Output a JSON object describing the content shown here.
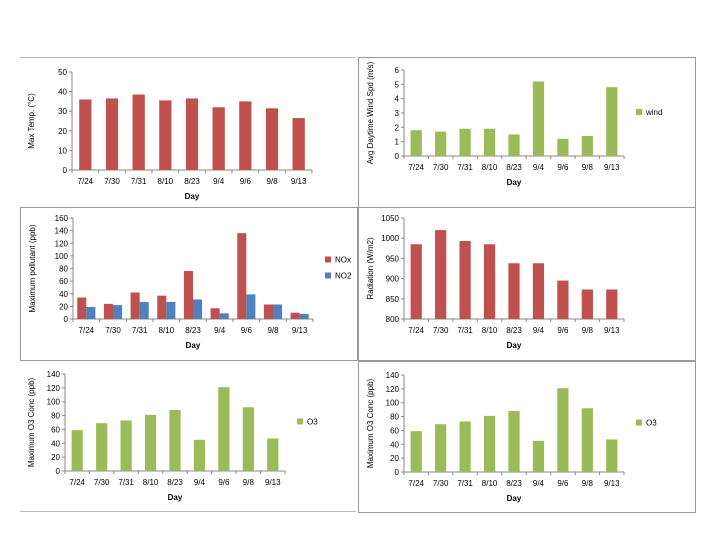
{
  "chart_data": [
    {
      "type": "bar",
      "categories": [
        "7/24",
        "7/30",
        "7/31",
        "8/10",
        "8/23",
        "9/4",
        "9/6",
        "9/8",
        "9/13"
      ],
      "series": [
        {
          "name": "",
          "values": [
            36,
            36.5,
            38.5,
            35.5,
            36.5,
            32,
            35,
            31.5,
            26.5
          ],
          "color": "#c0504d"
        }
      ],
      "ylabel": "Max Temp. (°C)",
      "xlabel": "Day",
      "ylim": [
        0,
        50
      ],
      "yticks": [
        "0",
        "10",
        "20",
        "30",
        "40",
        "50"
      ],
      "legend": "none"
    },
    {
      "type": "bar",
      "categories": [
        "7/24",
        "7/30",
        "7/31",
        "8/10",
        "8/23",
        "9/4",
        "9/6",
        "9/8",
        "9/13"
      ],
      "series": [
        {
          "name": "wind",
          "values": [
            1.8,
            1.7,
            1.9,
            1.9,
            1.5,
            5.2,
            1.2,
            1.4,
            4.8
          ],
          "color": "#9bbb59"
        }
      ],
      "ylabel": "Avg Daytime Wind Spd (m/s)",
      "xlabel": "Day",
      "ylim": [
        0,
        6
      ],
      "yticks": [
        "0",
        "1",
        "2",
        "3",
        "4",
        "5",
        "6"
      ],
      "legend": "right"
    },
    {
      "type": "bar",
      "categories": [
        "7/24",
        "7/30",
        "7/31",
        "8/10",
        "8/23",
        "9/4",
        "9/6",
        "9/8",
        "9/13"
      ],
      "series": [
        {
          "name": "NOx",
          "values": [
            34,
            24,
            42,
            37,
            76,
            17,
            136,
            23,
            10
          ],
          "color": "#c0504d"
        },
        {
          "name": "NO2",
          "values": [
            19,
            22,
            27,
            27,
            31,
            9,
            39,
            23,
            8
          ],
          "color": "#4f81bd"
        }
      ],
      "ylabel": "Maximum pollutant (ppb)",
      "xlabel": "Day",
      "ylim": [
        0,
        160
      ],
      "yticks": [
        "0",
        "20",
        "40",
        "60",
        "80",
        "100",
        "120",
        "140",
        "160"
      ],
      "legend": "right"
    },
    {
      "type": "bar",
      "categories": [
        "7/24",
        "7/30",
        "7/31",
        "8/10",
        "8/23",
        "9/4",
        "9/6",
        "9/8",
        "9/13"
      ],
      "series": [
        {
          "name": "",
          "values": [
            985,
            1020,
            993,
            985,
            938,
            938,
            895,
            873,
            873
          ],
          "color": "#c0504d"
        }
      ],
      "ylabel": "Radiation (W/m2)",
      "xlabel": "Day",
      "ylim": [
        800,
        1050
      ],
      "yticks": [
        "800",
        "850",
        "900",
        "950",
        "1000",
        "1050"
      ],
      "legend": "none"
    },
    {
      "type": "bar",
      "categories": [
        "7/24",
        "7/30",
        "7/31",
        "8/10",
        "8/23",
        "9/4",
        "9/6",
        "9/8",
        "9/13"
      ],
      "series": [
        {
          "name": "O3",
          "values": [
            59,
            69,
            73,
            81,
            88,
            45,
            121,
            92,
            47
          ],
          "color": "#9bbb59"
        }
      ],
      "ylabel": "Maximum O3 Conc (ppb)",
      "xlabel": "Day",
      "ylim": [
        0,
        140
      ],
      "yticks": [
        "0",
        "20",
        "40",
        "60",
        "80",
        "100",
        "120",
        "140"
      ],
      "legend": "right"
    },
    {
      "type": "bar",
      "categories": [
        "7/24",
        "7/30",
        "7/31",
        "8/10",
        "8/23",
        "9/4",
        "9/6",
        "9/8",
        "9/13"
      ],
      "series": [
        {
          "name": "O3",
          "values": [
            59,
            69,
            73,
            81,
            88,
            45,
            121,
            92,
            47
          ],
          "color": "#9bbb59"
        }
      ],
      "ylabel": "Maximum O3 Conc (ppb)",
      "xlabel": "Day",
      "ylim": [
        0,
        140
      ],
      "yticks": [
        "0",
        "20",
        "40",
        "60",
        "80",
        "100",
        "120",
        "140"
      ],
      "legend": "right"
    }
  ]
}
